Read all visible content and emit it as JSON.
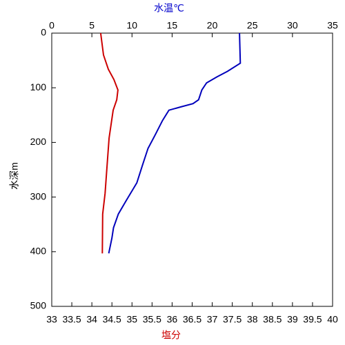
{
  "chart_data": {
    "type": "line",
    "xlabel": "塩分",
    "xlabel_color": "#cc0000",
    "x2label": "水温℃",
    "x2label_color": "#0000cc",
    "ylabel": "水深m",
    "xlim": [
      33,
      40
    ],
    "xticks": [
      33,
      33.5,
      34,
      34.5,
      35,
      35.5,
      36,
      36.5,
      37,
      37.5,
      38,
      38.5,
      39,
      39.5,
      40
    ],
    "x2lim": [
      0,
      35
    ],
    "x2ticks": [
      0,
      5,
      10,
      15,
      20,
      25,
      30,
      35
    ],
    "ylim": [
      0,
      500
    ],
    "yticks": [
      0,
      100,
      200,
      300,
      400,
      500
    ],
    "y_inverted": true,
    "series": [
      {
        "name": "水温",
        "axis": "x2",
        "color": "#0000bb",
        "depth": [
          0,
          55,
          70,
          80,
          91,
          104,
          122,
          129,
          135,
          141,
          160,
          186,
          211,
          242,
          274,
          306,
          331,
          356,
          375,
          403
        ],
        "values": [
          23.4,
          23.5,
          21.9,
          20.6,
          19.3,
          18.7,
          18.3,
          17.6,
          16.1,
          14.6,
          13.8,
          12.9,
          12.0,
          11.3,
          10.6,
          9.3,
          8.3,
          7.7,
          7.5,
          7.1
        ]
      },
      {
        "name": "塩分",
        "axis": "x",
        "color": "#cc0000",
        "depth": [
          0,
          40,
          66,
          85,
          104,
          122,
          141,
          192,
          242,
          293,
          331,
          403
        ],
        "values": [
          34.22,
          34.29,
          34.41,
          34.55,
          34.65,
          34.62,
          34.53,
          34.43,
          34.38,
          34.33,
          34.27,
          34.26
        ]
      }
    ]
  }
}
